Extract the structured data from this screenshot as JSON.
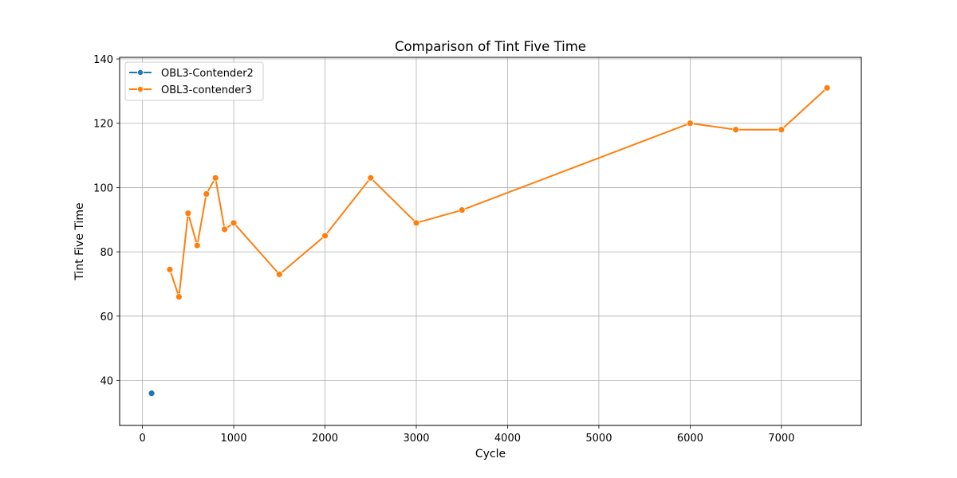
{
  "chart_data": {
    "type": "line",
    "title": "Comparison of Tint Five Time",
    "xlabel": "Cycle",
    "ylabel": "Tint Five Time",
    "xlim": [
      -250,
      7875
    ],
    "ylim": [
      26,
      140.5
    ],
    "xticks": [
      0,
      1000,
      2000,
      3000,
      4000,
      5000,
      6000,
      7000
    ],
    "xtick_labels": [
      "0",
      "1000",
      "2000",
      "3000",
      "4000",
      "5000",
      "6000",
      "7000"
    ],
    "yticks": [
      40,
      60,
      80,
      100,
      120,
      140
    ],
    "ytick_labels": [
      "40",
      "60",
      "80",
      "100",
      "120",
      "140"
    ],
    "grid": true,
    "legend_position": "top-left",
    "series": [
      {
        "name": "OBL3-Contender2",
        "color": "#1f77b4",
        "x": [
          100
        ],
        "y": [
          36
        ]
      },
      {
        "name": "OBL3-contender3",
        "color": "#ff7f0e",
        "x": [
          300,
          400,
          500,
          600,
          700,
          800,
          900,
          1000,
          1500,
          2000,
          2500,
          3000,
          3500,
          6000,
          6500,
          7000,
          7500
        ],
        "y": [
          74.5,
          66,
          92,
          82,
          98,
          103,
          87,
          89,
          73,
          85,
          103,
          89,
          93,
          120,
          118,
          118,
          131
        ]
      }
    ]
  }
}
